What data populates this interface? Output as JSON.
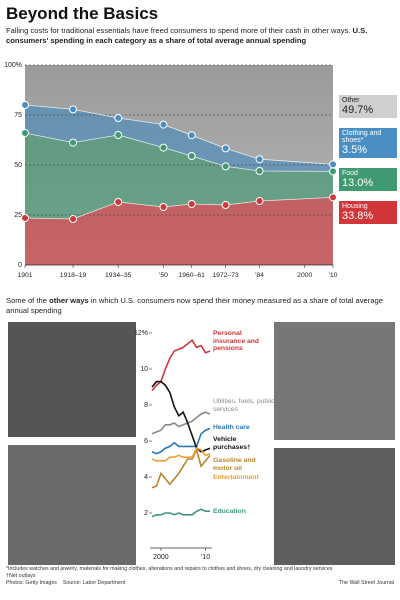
{
  "title": "Beyond the Basics",
  "intro": "Falling costs for traditional essentials have freed consumers to spend more of their cash in other ways.",
  "intro_bold": "U.S. consumers' spending in each category as a share of total average annual spending",
  "section2": [
    "Some of the",
    "other ways",
    "in which U.S. consumers now spend their money measured as a share of total average annual spending"
  ],
  "footnotes": [
    "*Includes watches and jewelry, materials for making clothes, alterations and repairs to clothes and shoes, dry cleaning and laundry services",
    "†Net outlays"
  ],
  "photo_credit": "Photos: Getty Images",
  "source": "Source: Labor Department",
  "publisher": "The Wall Street Journal",
  "chart_data": [
    {
      "type": "stacked_area",
      "x": [
        1901,
        1918,
        1934,
        1950,
        1960,
        1972,
        1984,
        2010
      ],
      "xlim": [
        1901,
        2010
      ],
      "xticks": [
        1901,
        {
          "value": 1918,
          "label": "1918–19"
        },
        {
          "value": 1934,
          "label": "1934–35"
        },
        {
          "value": 1950,
          "label": "'50"
        },
        {
          "value": 1960,
          "label": "1960–61"
        },
        {
          "value": 1972,
          "label": "1972–73"
        },
        {
          "value": 1984,
          "label": "'84"
        },
        2000,
        {
          "value": 2010,
          "label": "'10"
        }
      ],
      "ylim": [
        0,
        100
      ],
      "yticks": [
        0,
        25,
        50,
        75,
        {
          "value": 100,
          "label": "100%"
        }
      ],
      "grid": true,
      "series": [
        {
          "name": "Housing",
          "color": "#d0363a",
          "values": [
            23.5,
            23.0,
            31.5,
            29.0,
            30.5,
            30.0,
            32.0,
            33.8
          ],
          "last_label": "33.8%"
        },
        {
          "name": "Food",
          "color": "#3f9a72",
          "values": [
            42.5,
            38.2,
            33.5,
            29.7,
            24.0,
            19.3,
            15.0,
            13.0
          ],
          "last_label": "13.0%"
        },
        {
          "name": "Clothing and shoes*",
          "color": "#4a8fc4",
          "values": [
            14.0,
            16.6,
            8.5,
            11.5,
            10.4,
            9.0,
            5.9,
            3.5
          ],
          "last_label": "3.5%"
        },
        {
          "name": "Other",
          "color": "#c9c9c9",
          "values": [
            20.0,
            22.2,
            26.5,
            29.8,
            35.1,
            41.7,
            47.1,
            49.7
          ],
          "last_label": "49.7%"
        }
      ]
    },
    {
      "type": "line",
      "x": [
        1998,
        1999,
        2000,
        2001,
        2002,
        2003,
        2004,
        2005,
        2006,
        2007,
        2008,
        2009,
        2010,
        2011
      ],
      "xlim": [
        1998,
        2011
      ],
      "xticks": [
        2000,
        {
          "value": 2010,
          "label": "'10"
        }
      ],
      "ylim": [
        0,
        12
      ],
      "yticks": [
        2,
        4,
        6,
        8,
        10,
        {
          "value": 12,
          "label": "12%"
        }
      ],
      "series": [
        {
          "name": "Personal insurance and pensions",
          "color": "#d0363a",
          "values": [
            8.8,
            9.1,
            9.3,
            10.0,
            10.6,
            11.0,
            11.1,
            11.2,
            11.4,
            11.6,
            11.2,
            11.3,
            10.9,
            11.0
          ]
        },
        {
          "name": "Utilities, fuels, public services",
          "color": "#8a8a8a",
          "values": [
            6.4,
            6.5,
            6.6,
            6.9,
            6.9,
            7.0,
            6.8,
            6.9,
            7.0,
            7.1,
            7.3,
            7.5,
            7.6,
            7.5
          ]
        },
        {
          "name": "Health care",
          "color": "#2a7ab8",
          "values": [
            5.4,
            5.3,
            5.4,
            5.6,
            5.7,
            5.9,
            5.7,
            5.7,
            5.7,
            5.7,
            5.7,
            6.4,
            6.6,
            6.7
          ]
        },
        {
          "name": "Vehicle purchases†",
          "color": "#111111",
          "values": [
            9.0,
            9.3,
            9.3,
            9.1,
            8.7,
            7.9,
            7.4,
            7.6,
            7.0,
            6.3,
            5.6,
            5.4,
            5.5,
            5.6
          ]
        },
        {
          "name": "Gasoline and motor oil",
          "color": "#b8862e",
          "values": [
            3.4,
            3.5,
            4.2,
            3.9,
            3.6,
            3.9,
            4.2,
            4.6,
            5.0,
            5.0,
            5.5,
            4.6,
            4.9,
            5.2
          ]
        },
        {
          "name": "Entertainment",
          "color": "#f0a030",
          "values": [
            5.0,
            4.9,
            4.9,
            4.9,
            5.1,
            5.1,
            5.2,
            5.1,
            5.1,
            5.1,
            5.6,
            5.5,
            5.2,
            5.3
          ]
        },
        {
          "name": "Education",
          "color": "#3f9a72",
          "values": [
            1.8,
            1.9,
            1.9,
            2.0,
            2.0,
            1.9,
            2.0,
            1.9,
            1.9,
            1.9,
            2.1,
            2.2,
            2.1,
            2.1
          ]
        }
      ]
    }
  ]
}
